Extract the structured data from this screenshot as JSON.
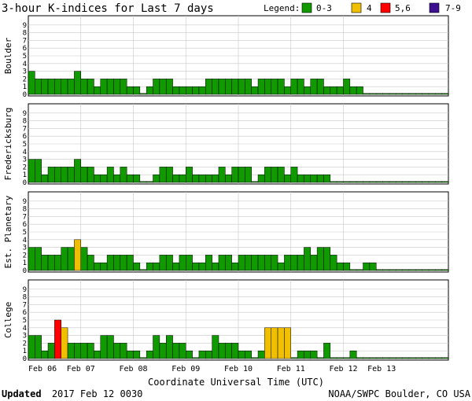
{
  "title": "3-hour K-indices for Last 7 days",
  "legend": {
    "label": "Legend:",
    "items": [
      {
        "label": "0-3",
        "color": "#119900"
      },
      {
        "label": "4",
        "color": "#f0c000"
      },
      {
        "label": "5,6",
        "color": "#ff0000"
      },
      {
        "label": "7-9",
        "color": "#3c1090"
      }
    ]
  },
  "footer": {
    "updated_label": "Updated",
    "updated_value": "2017 Feb 12 0030",
    "credit": "NOAA/SWPC Boulder, CO USA"
  },
  "chart_data": {
    "type": "bar",
    "xlabel": "Coordinate Universal Time (UTC)",
    "x_ticks": [
      "Feb 06",
      "Feb 07",
      "Feb 08",
      "Feb 09",
      "Feb 10",
      "Feb 11",
      "Feb 12",
      "Feb 13"
    ],
    "y_ticks": [
      "0",
      "1",
      "2",
      "3",
      "4",
      "5",
      "6",
      "7",
      "8",
      "9"
    ],
    "ylim": [
      0,
      9
    ],
    "bars_per_day": 8,
    "series": [
      {
        "name": "Boulder",
        "values": [
          3,
          2,
          2,
          2,
          2,
          2,
          2,
          3,
          2,
          2,
          1,
          2,
          2,
          2,
          2,
          1,
          1,
          0,
          1,
          2,
          2,
          2,
          1,
          1,
          1,
          1,
          1,
          2,
          2,
          2,
          2,
          2,
          2,
          2,
          1,
          2,
          2,
          2,
          2,
          1,
          2,
          2,
          1,
          2,
          2,
          1,
          1,
          1,
          2,
          1,
          1,
          0,
          0,
          0,
          0,
          0,
          0,
          0,
          0,
          0,
          0,
          0,
          0,
          0
        ]
      },
      {
        "name": "Fredericksburg",
        "values": [
          3,
          3,
          1,
          2,
          2,
          2,
          2,
          3,
          2,
          2,
          1,
          1,
          2,
          1,
          2,
          1,
          1,
          0,
          0,
          1,
          2,
          2,
          1,
          1,
          2,
          1,
          1,
          1,
          1,
          2,
          1,
          2,
          2,
          2,
          0,
          1,
          2,
          2,
          2,
          1,
          2,
          1,
          1,
          1,
          1,
          1,
          0,
          0,
          0,
          0,
          0,
          0,
          0,
          0,
          0,
          0,
          0,
          0,
          0,
          0,
          0,
          0,
          0,
          0
        ]
      },
      {
        "name": "Est. Planetary",
        "values": [
          3,
          3,
          2,
          2,
          2,
          3,
          3,
          4,
          3,
          2,
          1,
          1,
          2,
          2,
          2,
          2,
          1,
          0,
          1,
          1,
          2,
          2,
          1,
          2,
          2,
          1,
          1,
          2,
          1,
          2,
          2,
          1,
          2,
          2,
          2,
          2,
          2,
          2,
          1,
          2,
          2,
          2,
          3,
          2,
          3,
          3,
          2,
          1,
          1,
          0,
          0,
          1,
          1,
          0,
          0,
          0,
          0,
          0,
          0,
          0,
          0,
          0,
          0,
          0
        ]
      },
      {
        "name": "College",
        "values": [
          3,
          3,
          1,
          2,
          5,
          4,
          2,
          2,
          2,
          2,
          1,
          3,
          3,
          2,
          2,
          1,
          1,
          0,
          1,
          3,
          2,
          3,
          2,
          2,
          1,
          0,
          1,
          1,
          3,
          2,
          2,
          2,
          1,
          1,
          0,
          1,
          4,
          4,
          4,
          4,
          0,
          1,
          1,
          1,
          0,
          2,
          0,
          0,
          0,
          1,
          0,
          0,
          0,
          0,
          0,
          0,
          0,
          0,
          0,
          0,
          0,
          0,
          0,
          0
        ]
      }
    ],
    "grid": true
  }
}
